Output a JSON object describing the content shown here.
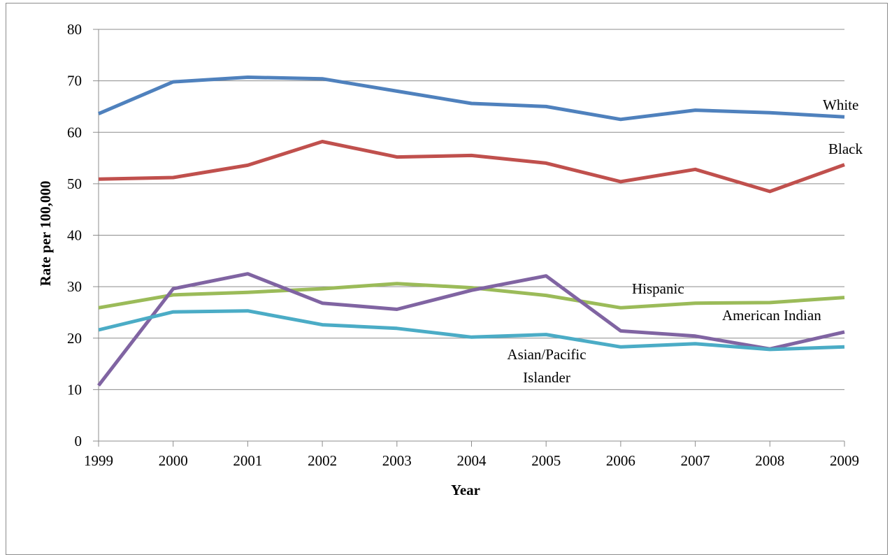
{
  "chart_data": {
    "type": "line",
    "title": "",
    "xlabel": "Year",
    "ylabel": "Rate per 100,000",
    "ylim": [
      0,
      80
    ],
    "yticks": [
      "0",
      "10",
      "20",
      "30",
      "40",
      "50",
      "60",
      "70",
      "80"
    ],
    "categories": [
      "1999",
      "2000",
      "2001",
      "2002",
      "2003",
      "2004",
      "2005",
      "2006",
      "2007",
      "2008",
      "2009"
    ],
    "grid": "horizontal",
    "legend": "none",
    "series": [
      {
        "name": "White",
        "color": "#4f81bd",
        "values": [
          63.6,
          69.8,
          70.7,
          70.4,
          68.0,
          65.6,
          65.0,
          62.5,
          64.3,
          63.8,
          63.0
        ]
      },
      {
        "name": "Black",
        "color": "#c0504d",
        "values": [
          50.9,
          51.2,
          53.6,
          58.2,
          55.2,
          55.5,
          54.0,
          50.4,
          52.8,
          48.5,
          53.7
        ]
      },
      {
        "name": "Hispanic",
        "color": "#9bbb59",
        "values": [
          25.9,
          28.4,
          28.9,
          29.6,
          30.6,
          29.8,
          28.3,
          25.9,
          26.8,
          26.9,
          27.9
        ]
      },
      {
        "name": "American Indian",
        "color": "#8064a2",
        "values": [
          10.8,
          29.6,
          32.5,
          26.8,
          25.6,
          29.3,
          32.1,
          21.4,
          20.4,
          17.9,
          21.2
        ]
      },
      {
        "name": "Asian/Pacific Islander",
        "color": "#4bacc6",
        "values": [
          21.6,
          25.1,
          25.3,
          22.6,
          21.9,
          20.2,
          20.7,
          18.3,
          18.9,
          17.8,
          18.3
        ]
      }
    ],
    "labels": {
      "white": "White",
      "black": "Black",
      "hispanic": "Hispanic",
      "american_indian": "American Indian",
      "asian_line1": "Asian/Pacific",
      "asian_line2": "Islander"
    }
  }
}
